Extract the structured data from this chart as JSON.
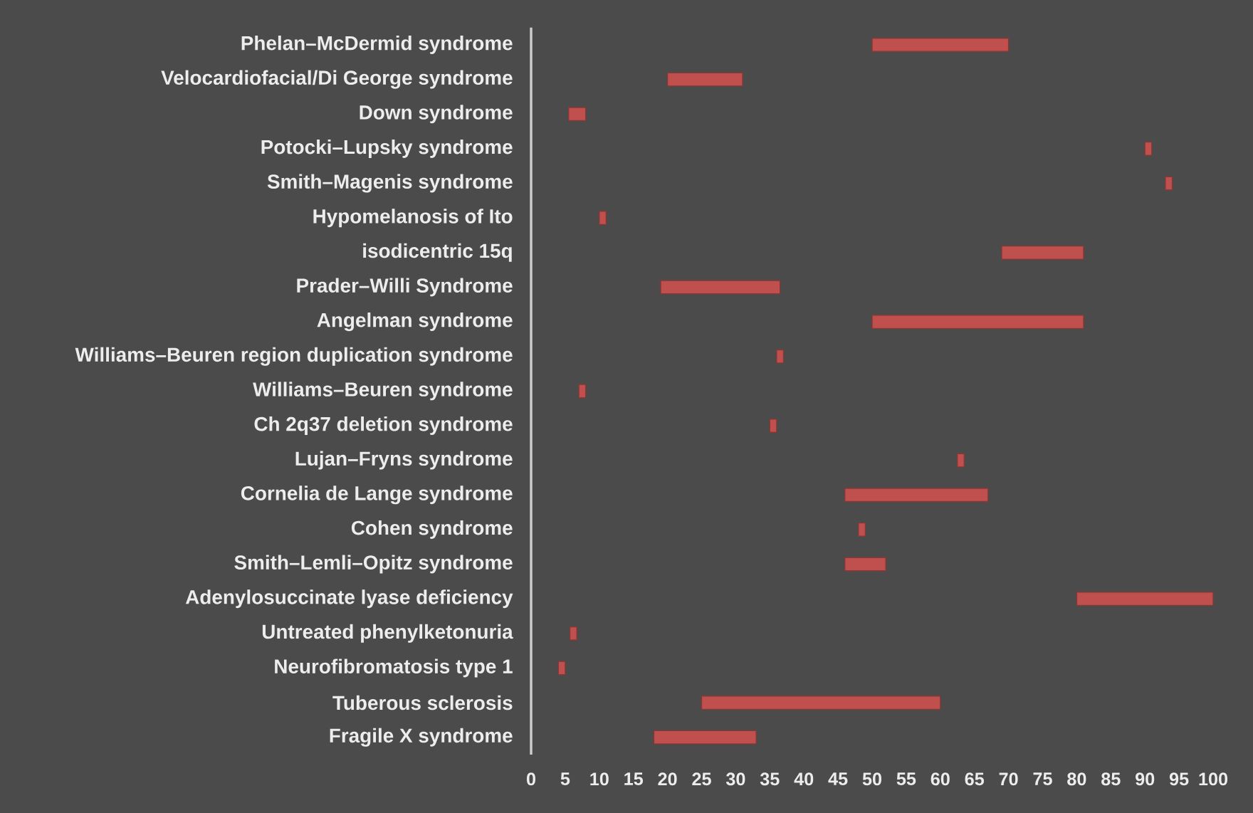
{
  "chart_data": {
    "type": "bar",
    "orientation": "horizontal",
    "categories": [
      "Phelan–McDermid syndrome",
      "Velocardiofacial/Di George syndrome",
      "Down syndrome",
      "Potocki–Lupsky syndrome",
      "Smith–Magenis syndrome",
      "Hypomelanosis of Ito",
      "isodicentric 15q",
      "Prader–Willi Syndrome",
      "Angelman syndrome",
      "Williams–Beuren region duplication syndrome",
      "Williams–Beuren syndrome",
      "Ch 2q37 deletion syndrome",
      "Lujan–Fryns syndrome",
      "Cornelia de Lange syndrome",
      "Cohen syndrome",
      "Smith–Lemli–Opitz syndrome",
      "Adenylosuccinate lyase deficiency",
      "Untreated phenylketonuria",
      "Neurofibromatosis type 1",
      "Tuberous sclerosis",
      "Fragile X syndrome"
    ],
    "base": [
      50,
      20,
      5.5,
      90,
      93,
      10,
      69,
      19,
      50,
      36,
      7,
      35,
      62.5,
      46,
      48,
      46,
      80,
      5.7,
      4,
      25,
      18
    ],
    "values": [
      20,
      11,
      2.5,
      1,
      1,
      1,
      12,
      17.5,
      31,
      1,
      1,
      1,
      1,
      21,
      1,
      6,
      20,
      1,
      1,
      35,
      15
    ],
    "color": "#c0504d",
    "xlim": [
      0,
      100
    ],
    "xticks": [
      0,
      5,
      10,
      15,
      20,
      25,
      30,
      35,
      40,
      45,
      50,
      55,
      60,
      65,
      70,
      75,
      80,
      85,
      90,
      95,
      100
    ]
  }
}
